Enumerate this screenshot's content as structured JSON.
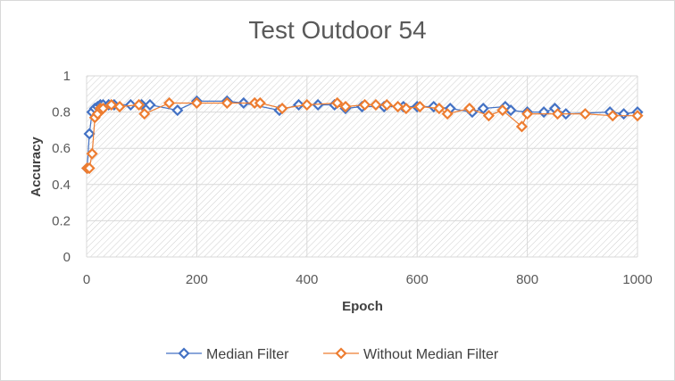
{
  "chart_data": {
    "type": "line",
    "title": "Test Outdoor 54",
    "xlabel": "Epoch",
    "ylabel": "Accuracy",
    "xlim": [
      0,
      1000
    ],
    "ylim": [
      0,
      1
    ],
    "xticks": [
      "0",
      "200",
      "400",
      "600",
      "800",
      "1000"
    ],
    "yticks": [
      "0",
      "0.2",
      "0.4",
      "0.6",
      "0.8",
      "1"
    ],
    "grid": true,
    "legend_position": "bottom",
    "series": [
      {
        "name": "Median Filter",
        "color": "#4472c4",
        "x": [
          1,
          5,
          10,
          15,
          20,
          25,
          30,
          40,
          50,
          80,
          100,
          115,
          165,
          200,
          255,
          285,
          350,
          385,
          420,
          450,
          470,
          500,
          540,
          575,
          600,
          630,
          660,
          700,
          720,
          760,
          770,
          800,
          830,
          850,
          870,
          950,
          975,
          1000
        ],
        "y": [
          0.49,
          0.68,
          0.8,
          0.82,
          0.83,
          0.84,
          0.84,
          0.84,
          0.84,
          0.84,
          0.84,
          0.84,
          0.81,
          0.86,
          0.86,
          0.85,
          0.81,
          0.84,
          0.84,
          0.84,
          0.82,
          0.83,
          0.83,
          0.83,
          0.83,
          0.83,
          0.82,
          0.8,
          0.82,
          0.83,
          0.81,
          0.8,
          0.8,
          0.82,
          0.79,
          0.8,
          0.79,
          0.8
        ]
      },
      {
        "name": "Without Median Filter",
        "color": "#ed7d31",
        "x": [
          1,
          5,
          10,
          15,
          20,
          25,
          30,
          45,
          60,
          95,
          105,
          150,
          200,
          255,
          305,
          315,
          355,
          400,
          455,
          470,
          505,
          525,
          545,
          565,
          580,
          605,
          640,
          655,
          695,
          730,
          755,
          790,
          800,
          855,
          905,
          955,
          1000
        ],
        "y": [
          0.49,
          0.49,
          0.57,
          0.77,
          0.79,
          0.82,
          0.82,
          0.84,
          0.83,
          0.84,
          0.79,
          0.85,
          0.85,
          0.85,
          0.85,
          0.85,
          0.82,
          0.84,
          0.85,
          0.83,
          0.84,
          0.84,
          0.84,
          0.83,
          0.82,
          0.83,
          0.82,
          0.79,
          0.82,
          0.78,
          0.81,
          0.72,
          0.79,
          0.79,
          0.79,
          0.78,
          0.78
        ]
      }
    ]
  }
}
